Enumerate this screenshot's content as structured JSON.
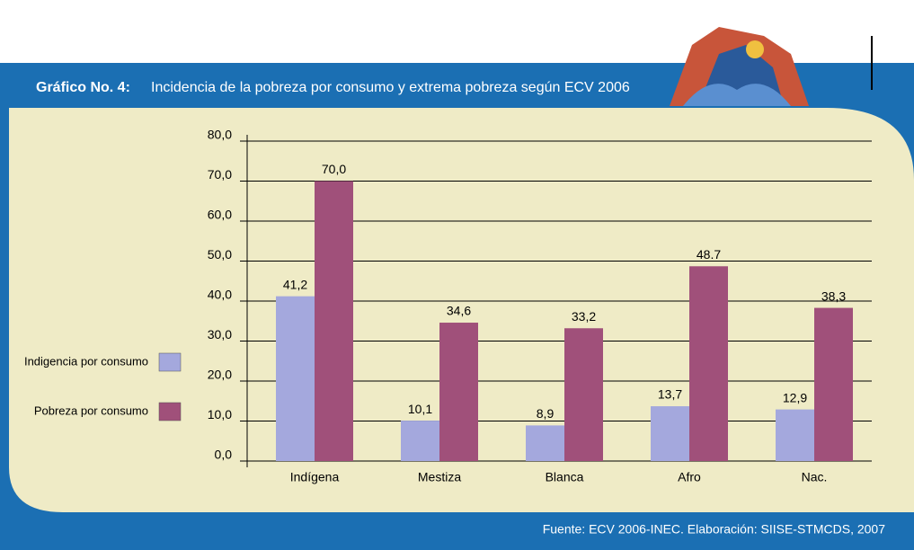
{
  "chart_data": {
    "type": "bar",
    "title_label": "Gráfico No. 4:",
    "title": "Incidencia de la pobreza por consumo y extrema pobreza según ECV 2006",
    "source": "Fuente: ECV 2006-INEC. Elaboración: SIISE-STMCDS, 2007",
    "categories": [
      "Indígena",
      "Mestiza",
      "Blanca",
      "Afro",
      "Nac."
    ],
    "series": [
      {
        "name": "Indigencia por consumo",
        "color": "#a4a8dd",
        "values": [
          41.2,
          10.1,
          8.9,
          13.7,
          12.9
        ],
        "value_labels": [
          "41,2",
          "10,1",
          "8,9",
          "13,7",
          "12,9"
        ]
      },
      {
        "name": "Pobreza por consumo",
        "color": "#a0507a",
        "values": [
          70.0,
          34.6,
          33.2,
          48.7,
          38.3
        ],
        "value_labels": [
          "70,0",
          "34,6",
          "33,2",
          "48.7",
          "38,3"
        ]
      }
    ],
    "ylim": [
      0,
      80
    ],
    "yticks": [
      {
        "value": 0,
        "label": "0,0"
      },
      {
        "value": 10,
        "label": "10,0"
      },
      {
        "value": 20,
        "label": "20,0"
      },
      {
        "value": 30,
        "label": "30,0"
      },
      {
        "value": 40,
        "label": "40,0"
      },
      {
        "value": 50,
        "label": "50,0"
      },
      {
        "value": 60,
        "label": "60,0"
      },
      {
        "value": 70,
        "label": "70,0"
      },
      {
        "value": 80,
        "label": "80,0"
      }
    ],
    "grid": true,
    "legend": "left"
  }
}
